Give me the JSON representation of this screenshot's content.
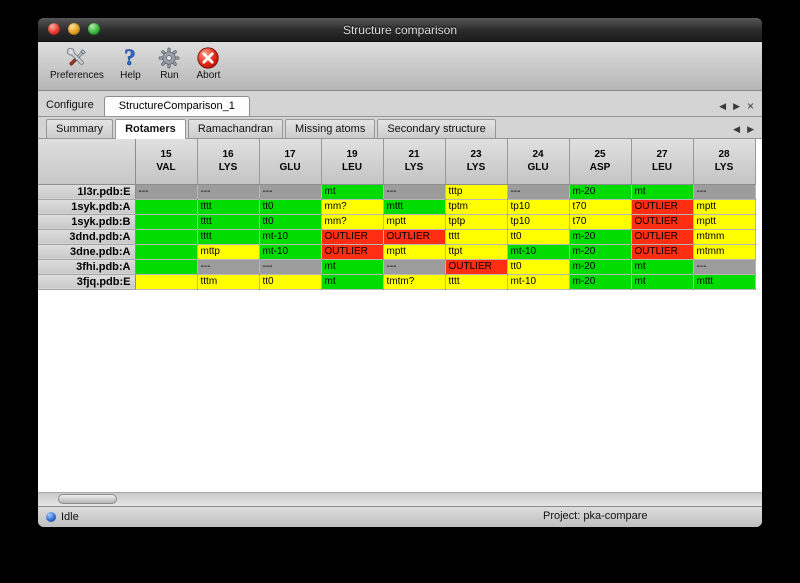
{
  "window": {
    "title": "Structure comparison"
  },
  "toolbar": {
    "buttons": [
      {
        "label": "Preferences",
        "icon": "preferences-tools-icon"
      },
      {
        "label": "Help",
        "icon": "help-question-icon"
      },
      {
        "label": "Run",
        "icon": "run-gear-icon"
      },
      {
        "label": "Abort",
        "icon": "abort-icon"
      }
    ]
  },
  "configure": {
    "label": "Configure",
    "tab_label": "StructureComparison_1",
    "nav": {
      "prev": "◀",
      "next": "▶",
      "close": "×"
    }
  },
  "tabbar": {
    "tabs": [
      "Summary",
      "Rotamers",
      "Ramachandran",
      "Missing atoms",
      "Secondary structure"
    ],
    "active": "Rotamers",
    "nav": {
      "prev": "◀",
      "next": "▶"
    }
  },
  "colors": {
    "green": "#00dc00",
    "yellow": "#ffff00",
    "red": "#ff2d12",
    "gray": "#9c9c9c"
  },
  "table": {
    "columns": [
      {
        "num": "15",
        "res": "VAL"
      },
      {
        "num": "16",
        "res": "LYS"
      },
      {
        "num": "17",
        "res": "GLU"
      },
      {
        "num": "19",
        "res": "LEU"
      },
      {
        "num": "21",
        "res": "LYS"
      },
      {
        "num": "23",
        "res": "LYS"
      },
      {
        "num": "24",
        "res": "GLU"
      },
      {
        "num": "25",
        "res": "ASP"
      },
      {
        "num": "27",
        "res": "LEU"
      },
      {
        "num": "28",
        "res": "LYS"
      }
    ],
    "rows": [
      {
        "label": "1l3r.pdb:E",
        "cells": [
          {
            "text": "---",
            "color": "gray"
          },
          {
            "text": "---",
            "color": "gray"
          },
          {
            "text": "---",
            "color": "gray"
          },
          {
            "text": "mt",
            "color": "green"
          },
          {
            "text": "---",
            "color": "gray"
          },
          {
            "text": "tttp",
            "color": "yellow"
          },
          {
            "text": "---",
            "color": "gray"
          },
          {
            "text": "m-20",
            "color": "green"
          },
          {
            "text": "mt",
            "color": "green"
          },
          {
            "text": "---",
            "color": "gray"
          }
        ]
      },
      {
        "label": "1syk.pdb:A",
        "cells": [
          {
            "text": "",
            "color": "green"
          },
          {
            "text": "tttt",
            "color": "green"
          },
          {
            "text": "tt0",
            "color": "green"
          },
          {
            "text": "mm?",
            "color": "yellow"
          },
          {
            "text": "mttt",
            "color": "green"
          },
          {
            "text": "tptm",
            "color": "yellow"
          },
          {
            "text": "tp10",
            "color": "yellow"
          },
          {
            "text": "t70",
            "color": "yellow"
          },
          {
            "text": "OUTLIER",
            "color": "red"
          },
          {
            "text": "mptt",
            "color": "yellow"
          }
        ]
      },
      {
        "label": "1syk.pdb:B",
        "cells": [
          {
            "text": "",
            "color": "green"
          },
          {
            "text": "tttt",
            "color": "green"
          },
          {
            "text": "tt0",
            "color": "green"
          },
          {
            "text": "mm?",
            "color": "yellow"
          },
          {
            "text": "mptt",
            "color": "yellow"
          },
          {
            "text": "tptp",
            "color": "yellow"
          },
          {
            "text": "tp10",
            "color": "yellow"
          },
          {
            "text": "t70",
            "color": "yellow"
          },
          {
            "text": "OUTLIER",
            "color": "red"
          },
          {
            "text": "mptt",
            "color": "yellow"
          }
        ]
      },
      {
        "label": "3dnd.pdb:A",
        "cells": [
          {
            "text": "",
            "color": "green"
          },
          {
            "text": "tttt",
            "color": "green"
          },
          {
            "text": "mt-10",
            "color": "green"
          },
          {
            "text": "OUTLIER",
            "color": "red"
          },
          {
            "text": "OUTLIER",
            "color": "red"
          },
          {
            "text": "tttt",
            "color": "yellow"
          },
          {
            "text": "tt0",
            "color": "yellow"
          },
          {
            "text": "m-20",
            "color": "green"
          },
          {
            "text": "OUTLIER",
            "color": "red"
          },
          {
            "text": "mtmm",
            "color": "yellow"
          }
        ]
      },
      {
        "label": "3dne.pdb:A",
        "cells": [
          {
            "text": "",
            "color": "green"
          },
          {
            "text": "mttp",
            "color": "yellow"
          },
          {
            "text": "mt-10",
            "color": "green"
          },
          {
            "text": "OUTLIER",
            "color": "red"
          },
          {
            "text": "mptt",
            "color": "yellow"
          },
          {
            "text": "ttpt",
            "color": "yellow"
          },
          {
            "text": "mt-10",
            "color": "green"
          },
          {
            "text": "m-20",
            "color": "green"
          },
          {
            "text": "OUTLIER",
            "color": "red"
          },
          {
            "text": "mtmm",
            "color": "yellow"
          }
        ]
      },
      {
        "label": "3fhi.pdb:A",
        "cells": [
          {
            "text": "",
            "color": "green"
          },
          {
            "text": "---",
            "color": "gray"
          },
          {
            "text": "---",
            "color": "gray"
          },
          {
            "text": "mt",
            "color": "green"
          },
          {
            "text": "---",
            "color": "gray"
          },
          {
            "text": "OUTLIER",
            "color": "red"
          },
          {
            "text": "tt0",
            "color": "yellow"
          },
          {
            "text": "m-20",
            "color": "green"
          },
          {
            "text": "mt",
            "color": "green"
          },
          {
            "text": "---",
            "color": "gray"
          }
        ]
      },
      {
        "label": "3fjq.pdb:E",
        "cells": [
          {
            "text": "",
            "color": "yellow"
          },
          {
            "text": "tttm",
            "color": "yellow"
          },
          {
            "text": "tt0",
            "color": "yellow"
          },
          {
            "text": "mt",
            "color": "green"
          },
          {
            "text": "tmtm?",
            "color": "yellow"
          },
          {
            "text": "tttt",
            "color": "yellow"
          },
          {
            "text": "mt-10",
            "color": "yellow"
          },
          {
            "text": "m-20",
            "color": "green"
          },
          {
            "text": "mt",
            "color": "green"
          },
          {
            "text": "mttt",
            "color": "green"
          }
        ]
      }
    ]
  },
  "statusbar": {
    "status": "Idle",
    "project": "Project: pka-compare"
  }
}
